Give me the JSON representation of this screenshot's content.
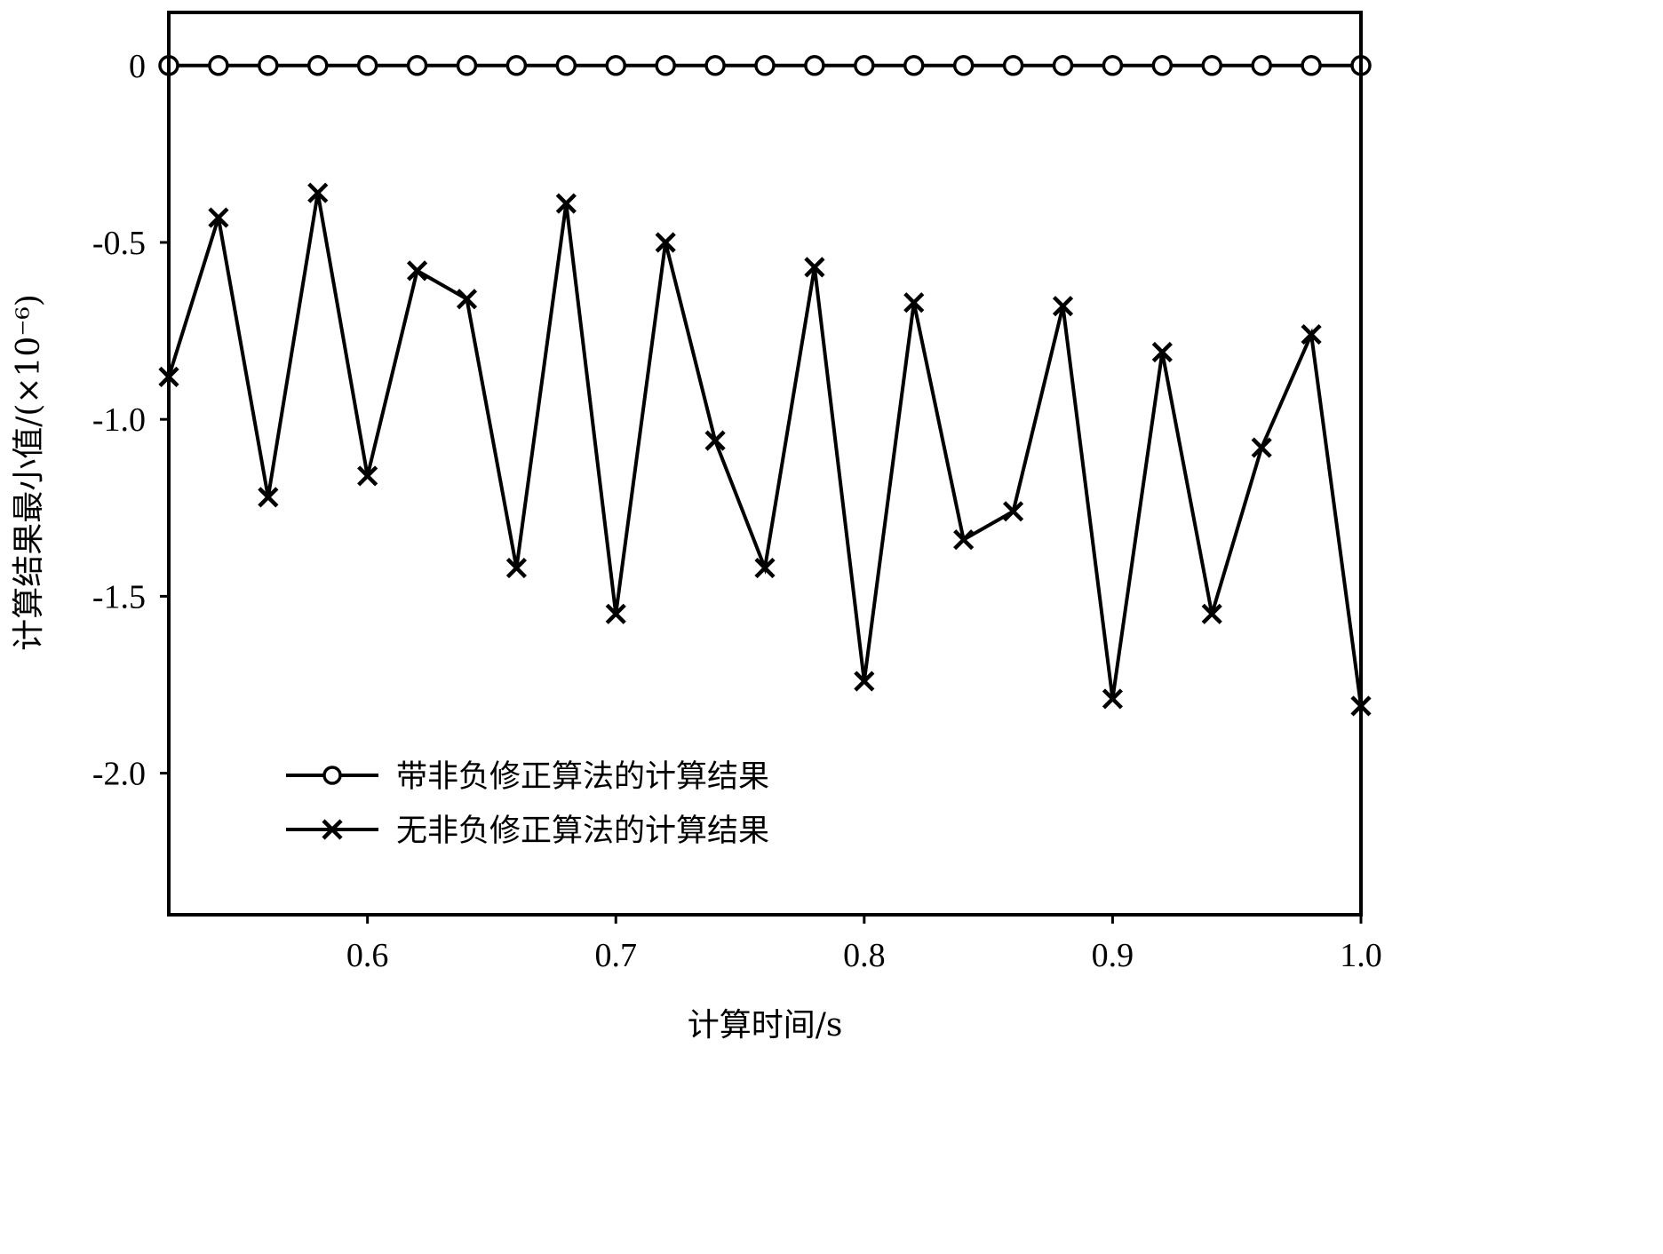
{
  "chart_data": {
    "type": "line",
    "title": "",
    "xlabel": "计算时间/s",
    "ylabel": "计算结果最小值/(×10⁻⁶)",
    "xlim": [
      0.52,
      1.0
    ],
    "ylim": [
      -2.4,
      0.15
    ],
    "xticks": [
      0.6,
      0.7,
      0.8,
      0.9,
      1.0
    ],
    "xtick_labels": [
      "0.6",
      "0.7",
      "0.8",
      "0.9",
      "1.0"
    ],
    "yticks": [
      0,
      -0.5,
      -1.0,
      -1.5,
      -2.0
    ],
    "ytick_labels": [
      "0",
      "-0.5",
      "-1.0",
      "-1.5",
      "-2.0"
    ],
    "grid": false,
    "legend_position": "bottom-left",
    "x": [
      0.52,
      0.54,
      0.56,
      0.58,
      0.6,
      0.62,
      0.64,
      0.66,
      0.68,
      0.7,
      0.72,
      0.74,
      0.76,
      0.78,
      0.8,
      0.82,
      0.84,
      0.86,
      0.88,
      0.9,
      0.92,
      0.94,
      0.96,
      0.98,
      1.0
    ],
    "series": [
      {
        "name": "带非负修正算法的计算结果",
        "marker": "circle",
        "color": "#000000",
        "values": [
          0,
          0,
          0,
          0,
          0,
          0,
          0,
          0,
          0,
          0,
          0,
          0,
          0,
          0,
          0,
          0,
          0,
          0,
          0,
          0,
          0,
          0,
          0,
          0,
          0
        ]
      },
      {
        "name": "无非负修正算法的计算结果",
        "marker": "x",
        "color": "#000000",
        "values": [
          -0.88,
          -0.43,
          -1.22,
          -0.36,
          -1.16,
          -0.58,
          -0.66,
          -1.42,
          -0.39,
          -1.55,
          -0.5,
          -1.06,
          -1.42,
          -0.57,
          -1.74,
          -0.67,
          -1.34,
          -1.26,
          -0.68,
          -1.79,
          -0.81,
          -1.55,
          -1.08,
          -0.76,
          -1.81
        ]
      }
    ]
  }
}
